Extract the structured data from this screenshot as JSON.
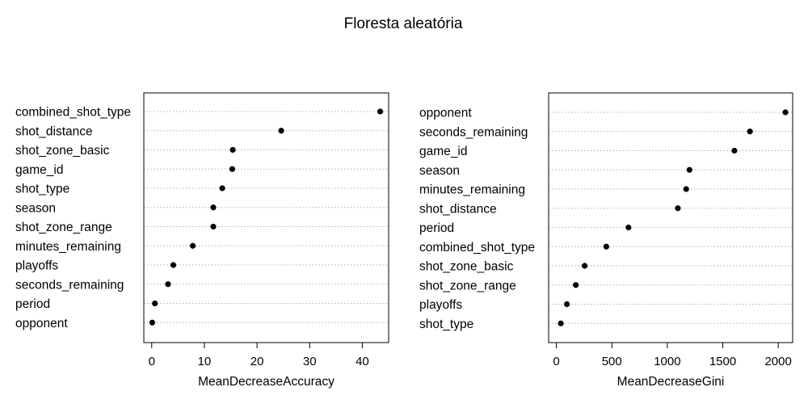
{
  "title": "Floresta aleatória",
  "chart_data": [
    {
      "type": "scatter",
      "subtype": "dotchart",
      "xlabel": "MeanDecreaseAccuracy",
      "xlim": [
        -1.5,
        45
      ],
      "xticks": [
        0,
        10,
        20,
        30,
        40
      ],
      "grid": "dotted horizontal",
      "categories": [
        "combined_shot_type",
        "shot_distance",
        "shot_zone_basic",
        "game_id",
        "shot_type",
        "season",
        "shot_zone_range",
        "minutes_remaining",
        "playoffs",
        "seconds_remaining",
        "period",
        "opponent"
      ],
      "values": [
        43.4,
        24.6,
        15.4,
        15.3,
        13.4,
        11.7,
        11.7,
        7.8,
        4.1,
        3.1,
        0.6,
        0.1
      ]
    },
    {
      "type": "scatter",
      "subtype": "dotchart",
      "xlabel": "MeanDecreaseGini",
      "xlim": [
        -70,
        2130
      ],
      "xticks": [
        0,
        500,
        1000,
        1500,
        2000
      ],
      "grid": "dotted horizontal",
      "categories": [
        "opponent",
        "seconds_remaining",
        "game_id",
        "season",
        "minutes_remaining",
        "shot_distance",
        "period",
        "combined_shot_type",
        "shot_zone_basic",
        "shot_zone_range",
        "playoffs",
        "shot_type"
      ],
      "values": [
        2065,
        1745,
        1605,
        1200,
        1170,
        1095,
        650,
        450,
        255,
        175,
        95,
        40
      ]
    }
  ]
}
